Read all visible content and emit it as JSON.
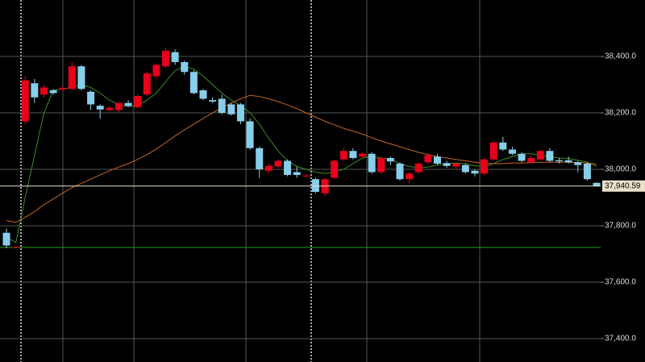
{
  "chart_data": {
    "type": "candlestick",
    "ylim": [
      37317,
      38600
    ],
    "yticks": [
      {
        "value": 37400,
        "label": "37,400.0"
      },
      {
        "value": 37600,
        "label": "37,600.0"
      },
      {
        "value": 37800,
        "label": "37,800.0"
      },
      {
        "value": 38000,
        "label": "38,000.0"
      },
      {
        "value": 38200,
        "label": "38,200.0"
      },
      {
        "value": 38400,
        "label": "38,400.0"
      }
    ],
    "grid": true,
    "up_color": "#e8001c",
    "down_color": "#87ceeb",
    "open": [
      37775,
      37722,
      38170,
      38305,
      38265,
      38280,
      38283,
      38285,
      38365,
      38275,
      38225,
      38210,
      38210,
      38235,
      38220,
      38265,
      38330,
      38365,
      38415,
      38380,
      38345,
      38280,
      38245,
      38250,
      38230,
      38230,
      38170,
      38075,
      37995,
      38010,
      38030,
      37990,
      37975,
      37965,
      37915,
      37970,
      38035,
      38065,
      38045,
      38055,
      37990,
      38040,
      38020,
      37965,
      37990,
      38025,
      38045,
      38022,
      38010,
      38015,
      37995,
      37985,
      38035,
      38095,
      38070,
      38055,
      38025,
      38035,
      38065,
      38032,
      38032,
      38025,
      38020,
      37952
    ],
    "high": [
      37790,
      37728,
      38330,
      38320,
      38300,
      38285,
      38295,
      38380,
      38370,
      38280,
      38230,
      38225,
      38240,
      38245,
      38265,
      38345,
      38375,
      38430,
      38425,
      38385,
      38350,
      38285,
      38255,
      38265,
      38235,
      38235,
      38180,
      38080,
      38020,
      38035,
      38035,
      38010,
      37982,
      37970,
      37970,
      38035,
      38075,
      38075,
      38060,
      38060,
      38045,
      38045,
      38025,
      37990,
      38025,
      38055,
      38055,
      38030,
      38025,
      38020,
      38000,
      38040,
      38100,
      38115,
      38080,
      38060,
      38050,
      38070,
      38075,
      38040,
      38045,
      38030,
      38025,
      37955
    ],
    "low": [
      37720,
      37718,
      38160,
      38235,
      38255,
      38265,
      38280,
      38280,
      38280,
      38210,
      38180,
      38205,
      38200,
      38220,
      38215,
      38260,
      38320,
      38360,
      38370,
      38335,
      38265,
      38245,
      38235,
      38195,
      38190,
      38160,
      38070,
      37970,
      37985,
      38005,
      37975,
      37970,
      37970,
      37915,
      37905,
      37965,
      38030,
      38035,
      38040,
      37985,
      37985,
      38015,
      37960,
      37950,
      37985,
      38020,
      38015,
      38005,
      38000,
      37985,
      37975,
      37980,
      38030,
      38065,
      38050,
      38025,
      38020,
      38030,
      38025,
      38020,
      38020,
      37990,
      37960,
      37938
    ],
    "close": [
      37730,
      37725,
      38315,
      38255,
      38290,
      38270,
      38288,
      38365,
      38285,
      38230,
      38212,
      38218,
      38235,
      38225,
      38260,
      38340,
      38370,
      38420,
      38380,
      38345,
      38270,
      38250,
      38240,
      38200,
      38195,
      38170,
      38075,
      38000,
      38012,
      38030,
      37980,
      37980,
      37978,
      37920,
      37965,
      38030,
      38065,
      38040,
      38055,
      37990,
      38040,
      38028,
      37965,
      37985,
      38020,
      38050,
      38020,
      38012,
      38020,
      37990,
      37985,
      38035,
      38095,
      38070,
      38055,
      38030,
      38040,
      38065,
      38030,
      38028,
      38025,
      38015,
      37965,
      37940.59
    ],
    "moving_averages": [
      {
        "color": "#3c8c1e",
        "values": [
          37760,
          37740,
          37900,
          38050,
          38200,
          38280,
          38285,
          38290,
          38300,
          38290,
          38270,
          38245,
          38230,
          38222,
          38225,
          38245,
          38270,
          38310,
          38350,
          38365,
          38355,
          38330,
          38300,
          38270,
          38245,
          38225,
          38200,
          38160,
          38110,
          38065,
          38030,
          38010,
          38000,
          37990,
          37985,
          37990,
          38000,
          38020,
          38040,
          38045,
          38040,
          38035,
          38020,
          38010,
          38005,
          38008,
          38015,
          38020,
          38022,
          38020,
          38012,
          38010,
          38020,
          38035,
          38045,
          38055,
          38055,
          38050,
          38045,
          38040,
          38038,
          38032,
          38025,
          38010
        ]
      },
      {
        "color": "#c8641e",
        "values": [
          37818,
          37812,
          37830,
          37850,
          37875,
          37895,
          37915,
          37935,
          37950,
          37965,
          37980,
          37995,
          38008,
          38020,
          38035,
          38052,
          38072,
          38095,
          38118,
          38140,
          38160,
          38180,
          38200,
          38218,
          38235,
          38250,
          38262,
          38258,
          38250,
          38240,
          38228,
          38215,
          38200,
          38185,
          38170,
          38158,
          38145,
          38135,
          38125,
          38112,
          38100,
          38090,
          38080,
          38070,
          38060,
          38052,
          38045,
          38040,
          38035,
          38030,
          38025,
          38022,
          38020,
          38020,
          38022,
          38022,
          38024,
          38025,
          38025,
          38025,
          38025,
          38024,
          38022,
          38018
        ]
      }
    ],
    "price_line": {
      "value": 37940.59,
      "label": "37,940.59",
      "color": "#e8e0c8"
    },
    "level_line": {
      "value": 37723,
      "color": "#1fa31f"
    }
  }
}
